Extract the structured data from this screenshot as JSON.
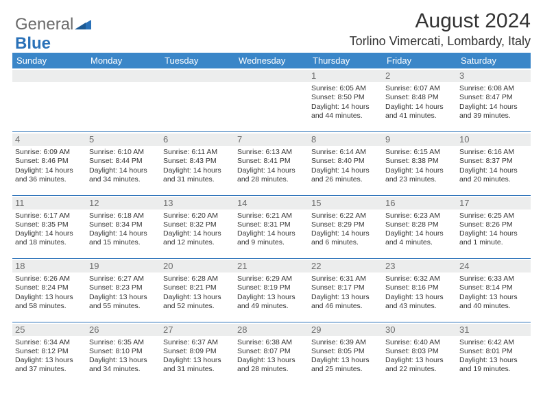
{
  "brand": {
    "part1": "General",
    "part2": "Blue",
    "color1": "#6b6b6b",
    "color2": "#2a71b8"
  },
  "title": "August 2024",
  "location": "Torlino Vimercati, Lombardy, Italy",
  "header_bg": "#3a86c8",
  "header_fg": "#ffffff",
  "daynum_bg": "#eceded",
  "divider_color": "#2a71b8",
  "weekdays": [
    "Sunday",
    "Monday",
    "Tuesday",
    "Wednesday",
    "Thursday",
    "Friday",
    "Saturday"
  ],
  "weeks": [
    [
      null,
      null,
      null,
      null,
      {
        "n": "1",
        "l": [
          "Sunrise: 6:05 AM",
          "Sunset: 8:50 PM",
          "Daylight: 14 hours",
          "and 44 minutes."
        ]
      },
      {
        "n": "2",
        "l": [
          "Sunrise: 6:07 AM",
          "Sunset: 8:48 PM",
          "Daylight: 14 hours",
          "and 41 minutes."
        ]
      },
      {
        "n": "3",
        "l": [
          "Sunrise: 6:08 AM",
          "Sunset: 8:47 PM",
          "Daylight: 14 hours",
          "and 39 minutes."
        ]
      }
    ],
    [
      {
        "n": "4",
        "l": [
          "Sunrise: 6:09 AM",
          "Sunset: 8:46 PM",
          "Daylight: 14 hours",
          "and 36 minutes."
        ]
      },
      {
        "n": "5",
        "l": [
          "Sunrise: 6:10 AM",
          "Sunset: 8:44 PM",
          "Daylight: 14 hours",
          "and 34 minutes."
        ]
      },
      {
        "n": "6",
        "l": [
          "Sunrise: 6:11 AM",
          "Sunset: 8:43 PM",
          "Daylight: 14 hours",
          "and 31 minutes."
        ]
      },
      {
        "n": "7",
        "l": [
          "Sunrise: 6:13 AM",
          "Sunset: 8:41 PM",
          "Daylight: 14 hours",
          "and 28 minutes."
        ]
      },
      {
        "n": "8",
        "l": [
          "Sunrise: 6:14 AM",
          "Sunset: 8:40 PM",
          "Daylight: 14 hours",
          "and 26 minutes."
        ]
      },
      {
        "n": "9",
        "l": [
          "Sunrise: 6:15 AM",
          "Sunset: 8:38 PM",
          "Daylight: 14 hours",
          "and 23 minutes."
        ]
      },
      {
        "n": "10",
        "l": [
          "Sunrise: 6:16 AM",
          "Sunset: 8:37 PM",
          "Daylight: 14 hours",
          "and 20 minutes."
        ]
      }
    ],
    [
      {
        "n": "11",
        "l": [
          "Sunrise: 6:17 AM",
          "Sunset: 8:35 PM",
          "Daylight: 14 hours",
          "and 18 minutes."
        ]
      },
      {
        "n": "12",
        "l": [
          "Sunrise: 6:18 AM",
          "Sunset: 8:34 PM",
          "Daylight: 14 hours",
          "and 15 minutes."
        ]
      },
      {
        "n": "13",
        "l": [
          "Sunrise: 6:20 AM",
          "Sunset: 8:32 PM",
          "Daylight: 14 hours",
          "and 12 minutes."
        ]
      },
      {
        "n": "14",
        "l": [
          "Sunrise: 6:21 AM",
          "Sunset: 8:31 PM",
          "Daylight: 14 hours",
          "and 9 minutes."
        ]
      },
      {
        "n": "15",
        "l": [
          "Sunrise: 6:22 AM",
          "Sunset: 8:29 PM",
          "Daylight: 14 hours",
          "and 6 minutes."
        ]
      },
      {
        "n": "16",
        "l": [
          "Sunrise: 6:23 AM",
          "Sunset: 8:28 PM",
          "Daylight: 14 hours",
          "and 4 minutes."
        ]
      },
      {
        "n": "17",
        "l": [
          "Sunrise: 6:25 AM",
          "Sunset: 8:26 PM",
          "Daylight: 14 hours",
          "and 1 minute."
        ]
      }
    ],
    [
      {
        "n": "18",
        "l": [
          "Sunrise: 6:26 AM",
          "Sunset: 8:24 PM",
          "Daylight: 13 hours",
          "and 58 minutes."
        ]
      },
      {
        "n": "19",
        "l": [
          "Sunrise: 6:27 AM",
          "Sunset: 8:23 PM",
          "Daylight: 13 hours",
          "and 55 minutes."
        ]
      },
      {
        "n": "20",
        "l": [
          "Sunrise: 6:28 AM",
          "Sunset: 8:21 PM",
          "Daylight: 13 hours",
          "and 52 minutes."
        ]
      },
      {
        "n": "21",
        "l": [
          "Sunrise: 6:29 AM",
          "Sunset: 8:19 PM",
          "Daylight: 13 hours",
          "and 49 minutes."
        ]
      },
      {
        "n": "22",
        "l": [
          "Sunrise: 6:31 AM",
          "Sunset: 8:17 PM",
          "Daylight: 13 hours",
          "and 46 minutes."
        ]
      },
      {
        "n": "23",
        "l": [
          "Sunrise: 6:32 AM",
          "Sunset: 8:16 PM",
          "Daylight: 13 hours",
          "and 43 minutes."
        ]
      },
      {
        "n": "24",
        "l": [
          "Sunrise: 6:33 AM",
          "Sunset: 8:14 PM",
          "Daylight: 13 hours",
          "and 40 minutes."
        ]
      }
    ],
    [
      {
        "n": "25",
        "l": [
          "Sunrise: 6:34 AM",
          "Sunset: 8:12 PM",
          "Daylight: 13 hours",
          "and 37 minutes."
        ]
      },
      {
        "n": "26",
        "l": [
          "Sunrise: 6:35 AM",
          "Sunset: 8:10 PM",
          "Daylight: 13 hours",
          "and 34 minutes."
        ]
      },
      {
        "n": "27",
        "l": [
          "Sunrise: 6:37 AM",
          "Sunset: 8:09 PM",
          "Daylight: 13 hours",
          "and 31 minutes."
        ]
      },
      {
        "n": "28",
        "l": [
          "Sunrise: 6:38 AM",
          "Sunset: 8:07 PM",
          "Daylight: 13 hours",
          "and 28 minutes."
        ]
      },
      {
        "n": "29",
        "l": [
          "Sunrise: 6:39 AM",
          "Sunset: 8:05 PM",
          "Daylight: 13 hours",
          "and 25 minutes."
        ]
      },
      {
        "n": "30",
        "l": [
          "Sunrise: 6:40 AM",
          "Sunset: 8:03 PM",
          "Daylight: 13 hours",
          "and 22 minutes."
        ]
      },
      {
        "n": "31",
        "l": [
          "Sunrise: 6:42 AM",
          "Sunset: 8:01 PM",
          "Daylight: 13 hours",
          "and 19 minutes."
        ]
      }
    ]
  ]
}
